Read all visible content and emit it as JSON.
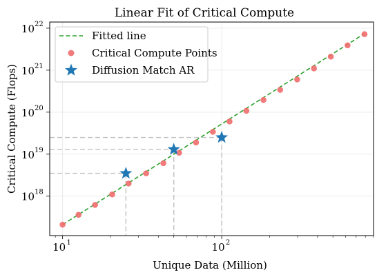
{
  "chart_data": {
    "type": "scatter",
    "title": "Linear Fit of Critical Compute",
    "xlabel": "Unique Data (Million)",
    "ylabel": "Critical Compute (Flops)",
    "xscale": "log",
    "yscale": "log",
    "xlim": [
      8.3,
      900
    ],
    "ylim": [
      1.15e+17,
      1.4e+22
    ],
    "grid": true,
    "legend_position": "top-left",
    "x_ticks": [
      {
        "value": 10,
        "base": "10",
        "exp": "1"
      },
      {
        "value": 100,
        "base": "10",
        "exp": "2"
      }
    ],
    "y_ticks": [
      {
        "value": 1e+18,
        "base": "10",
        "exp": "18"
      },
      {
        "value": 1e+19,
        "base": "10",
        "exp": "19"
      },
      {
        "value": 1e+20,
        "base": "10",
        "exp": "20"
      },
      {
        "value": 1e+21,
        "base": "10",
        "exp": "21"
      },
      {
        "value": 1e+22,
        "base": "10",
        "exp": "22"
      }
    ],
    "fitted_line": {
      "name": "Fitted line",
      "color": "#2ca02c",
      "x": [
        10,
        780
      ],
      "y": [
        2.1e+17,
        7.2e+21
      ]
    },
    "critical_points": {
      "name": "Critical Compute Points",
      "color": "#f06b6b",
      "x": [
        10,
        12.6,
        16,
        20.5,
        26,
        33.5,
        43,
        54,
        69,
        88,
        112,
        143,
        183,
        233,
        298,
        380,
        485,
        618,
        790
      ],
      "y": [
        2.1e+17,
        3.6e+17,
        6.2e+17,
        1.1e+18,
        2e+18,
        3.5e+18,
        6.1e+18,
        1.08e+19,
        1.9e+19,
        3.4e+19,
        6e+19,
        1.08e+20,
        1.95e+20,
        3.4e+20,
        6e+20,
        1.1e+21,
        2.1e+21,
        3.9e+21,
        7.2e+21
      ]
    },
    "diffusion_match": {
      "name": "Diffusion Match AR",
      "color": "#1f77b4",
      "x": [
        25,
        50,
        100
      ],
      "y": [
        3.5e+18,
        1.3e+19,
        2.5e+19
      ]
    },
    "reference_lines_color": "#c0c0c0"
  }
}
